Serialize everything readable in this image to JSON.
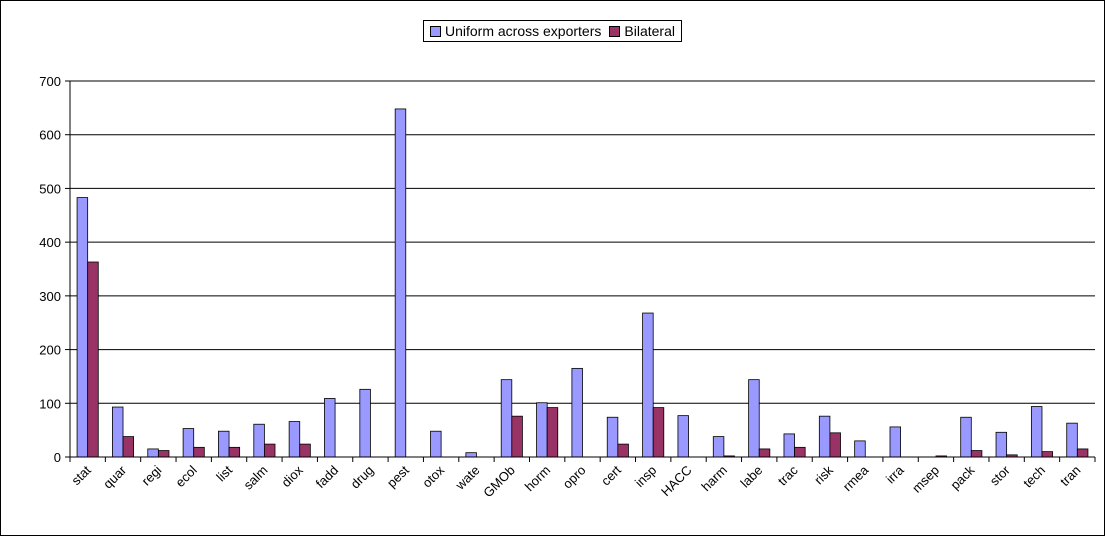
{
  "chart_data": {
    "type": "bar",
    "categories": [
      "stat",
      "quar",
      "regi",
      "ecol",
      "list",
      "salm",
      "diox",
      "fadd",
      "drug",
      "pest",
      "otox",
      "wate",
      "GMOb",
      "horm",
      "opro",
      "cert",
      "insp",
      "HACC",
      "harm",
      "labe",
      "trac",
      "risk",
      "rmea",
      "irra",
      "msep",
      "pack",
      "stor",
      "tech",
      "tran"
    ],
    "series": [
      {
        "name": "Uniform across exporters",
        "color": "#9999ff",
        "values": [
          483,
          93,
          15,
          53,
          48,
          61,
          66,
          109,
          126,
          648,
          48,
          8,
          144,
          101,
          165,
          74,
          268,
          77,
          38,
          144,
          43,
          76,
          30,
          56,
          0,
          74,
          46,
          94,
          63
        ]
      },
      {
        "name": "Bilateral",
        "color": "#993366",
        "values": [
          363,
          38,
          12,
          18,
          18,
          24,
          24,
          0,
          0,
          0,
          0,
          0,
          76,
          92,
          0,
          24,
          92,
          0,
          2,
          15,
          18,
          45,
          0,
          0,
          2,
          12,
          4,
          10,
          15
        ]
      }
    ],
    "ylim": [
      0,
      700
    ],
    "yticks": [
      0,
      100,
      200,
      300,
      400,
      500,
      600,
      700
    ],
    "grid": true,
    "legend": "top-center"
  }
}
